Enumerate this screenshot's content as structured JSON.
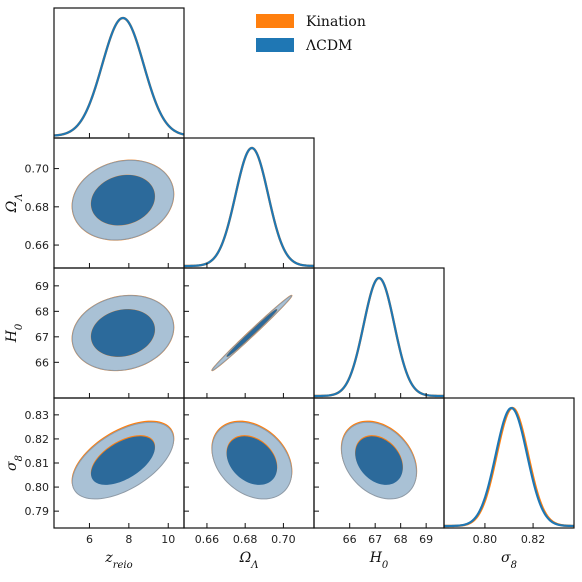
{
  "chart_data": {
    "type": "corner",
    "parameters": [
      {
        "key": "z_reio",
        "label": "z",
        "label_sub": "reio",
        "ticks": [
          6,
          8,
          10
        ],
        "range": [
          4.2,
          10.8
        ],
        "mean": 7.7,
        "sd": 1.05
      },
      {
        "key": "Omega_Lambda",
        "label": "Ω",
        "label_sub": "Λ",
        "ticks": [
          0.66,
          0.68,
          0.7
        ],
        "range": [
          0.648,
          0.716
        ],
        "mean": 0.6835,
        "sd": 0.0085
      },
      {
        "key": "H0",
        "label": "H",
        "label_sub": "0",
        "ticks": [
          66,
          67,
          68,
          69
        ],
        "range": [
          64.6,
          69.7
        ],
        "mean": 67.15,
        "sd": 0.6
      },
      {
        "key": "sigma8",
        "label": "σ",
        "label_sub": "8",
        "ticks": [
          0.79,
          0.8,
          0.81,
          0.82,
          0.83
        ],
        "range": [
          0.783,
          0.837
        ],
        "mean": 0.811,
        "sd": 0.0065
      }
    ],
    "x_ticks": [
      [
        "6",
        "8",
        "10"
      ],
      [
        "0.66",
        "0.68",
        "0.70"
      ],
      [
        "66",
        "67",
        "68",
        "69"
      ],
      [
        "0.80",
        "0.82"
      ]
    ],
    "y_ticks": {
      "1": [
        "0.66",
        "0.68",
        "0.70"
      ],
      "2": [
        "66",
        "67",
        "68",
        "69"
      ],
      "3": [
        "0.79",
        "0.80",
        "0.81",
        "0.82",
        "0.83"
      ]
    },
    "x_tick_values": [
      [
        6,
        8,
        10
      ],
      [
        0.66,
        0.68,
        0.7
      ],
      [
        66,
        67,
        68,
        69
      ],
      [
        0.8,
        0.82
      ]
    ],
    "y_tick_values": {
      "1": [
        0.66,
        0.68,
        0.7
      ],
      "2": [
        66,
        67,
        68,
        69
      ],
      "3": [
        0.79,
        0.8,
        0.81,
        0.82,
        0.83
      ]
    },
    "correlations": {
      "1-0": 0.15,
      "2-0": 0.15,
      "2-1": 0.995,
      "3-0": 0.55,
      "3-1": -0.3,
      "3-2": -0.3
    },
    "series": [
      {
        "name": "Kination",
        "color": "#ff7f0e",
        "shift": [
          0.0,
          0.0,
          0.0,
          0.0004
        ]
      },
      {
        "name": "ΛCDM",
        "color": "#1f77b4",
        "shift": [
          0.0,
          0.0,
          0.0,
          0.0
        ]
      }
    ],
    "contour_colors": {
      "inner": "#2c6a9b",
      "outer": "#a9c1d5",
      "edge": "#8e9aa6"
    },
    "legend": {
      "position": "top-right"
    }
  }
}
